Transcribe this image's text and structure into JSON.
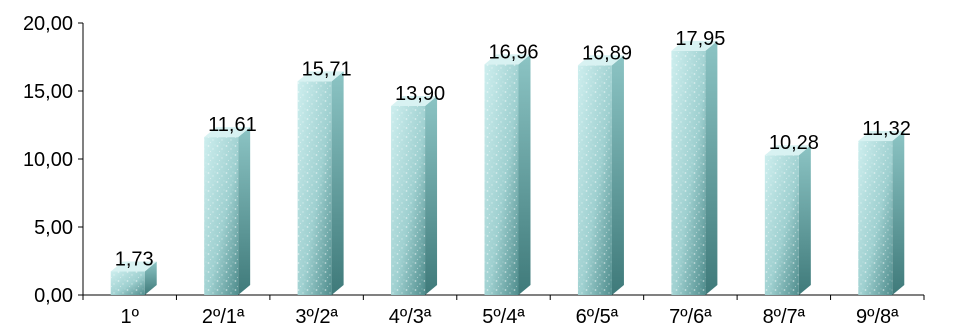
{
  "chart_data": {
    "type": "bar",
    "categories": [
      "1º",
      "2º/1ª",
      "3º/2ª",
      "4º/3ª",
      "5º/4ª",
      "6º/5ª",
      "7º/6ª",
      "8º/7ª",
      "9º/8ª"
    ],
    "values": [
      1.73,
      11.61,
      15.71,
      13.9,
      16.96,
      16.89,
      17.95,
      10.28,
      11.32
    ],
    "value_labels": [
      "1,73",
      "11,61",
      "15,71",
      "13,90",
      "16,96",
      "16,89",
      "17,95",
      "10,28",
      "11,32"
    ],
    "ylim": [
      0,
      20
    ],
    "y_ticks": [
      0,
      5,
      10,
      15,
      20
    ],
    "y_tick_labels": [
      "0,00",
      "5,00",
      "10,00",
      "15,00",
      "20,00"
    ],
    "title": "",
    "xlabel": "",
    "ylabel": "",
    "grid": false,
    "legend": "none",
    "style": "3d-columns",
    "colors": {
      "bar_front_light": "#c6ecec",
      "bar_front_dark": "#4e8a8a",
      "bar_side": "#5f9c9c",
      "bar_top": "#d8f2f2",
      "axis": "#000000",
      "text": "#000000"
    }
  }
}
